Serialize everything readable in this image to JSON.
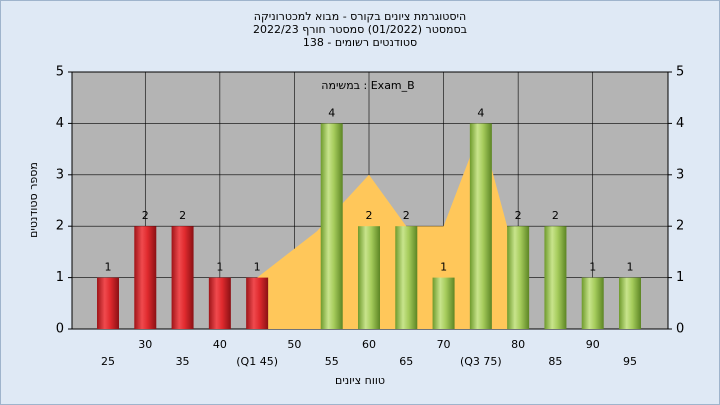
{
  "chart_data": {
    "type": "bar",
    "title": [
      "היסטוגרמת ציונים בקורס - מבוא למכטרוניקה",
      "בסמסטר  (01/2022)  סמסטר חורף 2022/23",
      "סטודנטים רשומים - 138"
    ],
    "annotation": "במשימה : Exam_B",
    "x_label": "טווח ציונים",
    "y_label": "מספר סטודנטים",
    "categories": [
      "25",
      "30",
      "35",
      "40",
      "(Q1 45)",
      "50",
      "55",
      "60",
      "65",
      "70",
      "(Q3 75)",
      "80",
      "85",
      "90",
      "95"
    ],
    "values": [
      1,
      2,
      2,
      1,
      1,
      null,
      4,
      2,
      2,
      1,
      4,
      2,
      2,
      1,
      1
    ],
    "bar_colors": [
      "red",
      "red",
      "red",
      "red",
      "red",
      "red",
      "green",
      "green",
      "green",
      "green",
      "green",
      "green",
      "green",
      "green",
      "green"
    ],
    "area": {
      "color": "#ffc75a",
      "x": [
        45,
        53,
        60,
        65,
        70,
        75,
        80
      ],
      "values": [
        1,
        1.9,
        3,
        2,
        2,
        3.9,
        1.2
      ]
    },
    "ylim": [
      0,
      5
    ],
    "yticks": [
      0,
      1,
      2,
      3,
      4,
      5
    ],
    "y2lim": [
      0,
      5
    ],
    "y2ticks": [
      0,
      1,
      2,
      3,
      4,
      5
    ],
    "grid": true
  }
}
